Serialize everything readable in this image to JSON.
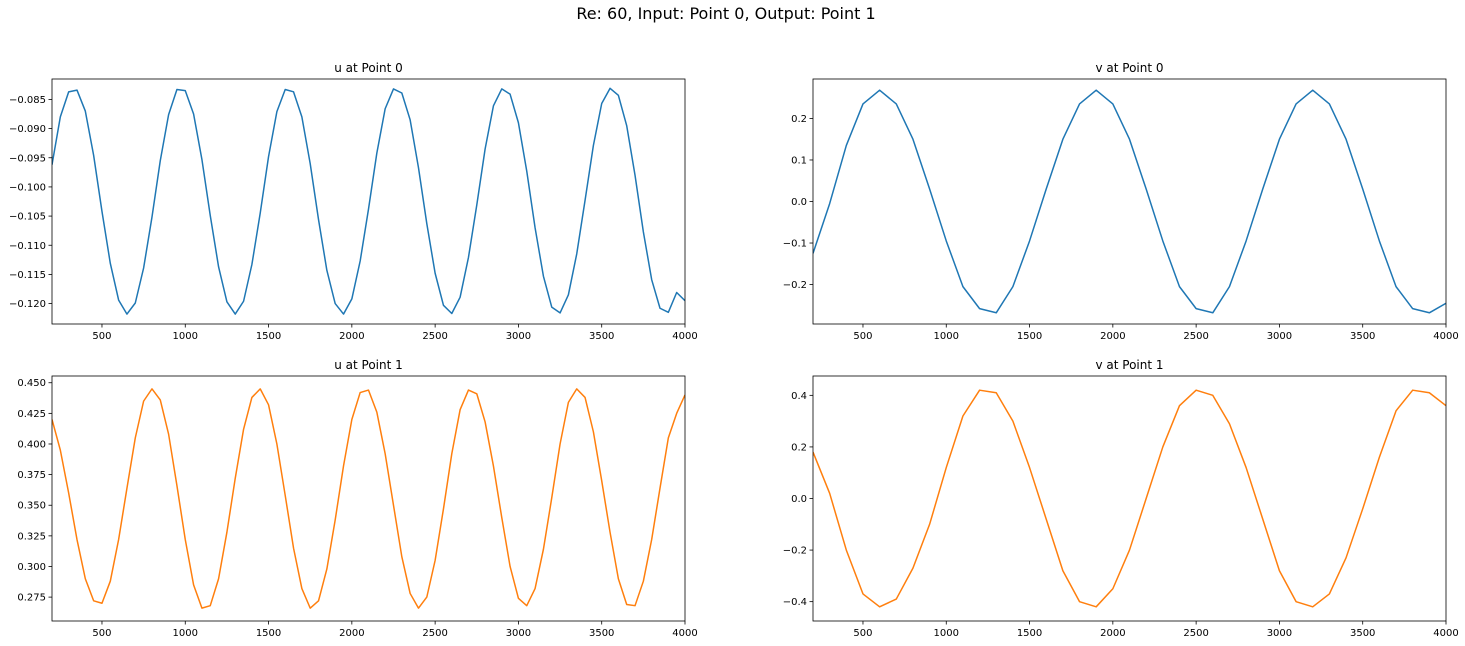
{
  "figure": {
    "suptitle": "Re: 60, Input: Point 0, Output: Point 1"
  },
  "chart_data": [
    {
      "type": "line",
      "title": "u at Point 0",
      "xlabel": "",
      "ylabel": "",
      "xlim": [
        200,
        4000
      ],
      "ylim": [
        -0.1235,
        -0.0815
      ],
      "xticks": [
        500,
        1000,
        1500,
        2000,
        2500,
        3000,
        3500,
        4000
      ],
      "yticks": [
        -0.085,
        -0.09,
        -0.095,
        -0.1,
        -0.105,
        -0.11,
        -0.115,
        -0.12
      ],
      "ytick_labels": [
        "−0.085",
        "−0.090",
        "−0.095",
        "−0.100",
        "−0.105",
        "−0.110",
        "−0.115",
        "−0.120"
      ],
      "series": [
        {
          "color": "#1f77b4",
          "x": [
            200,
            250,
            300,
            350,
            400,
            450,
            500,
            550,
            600,
            650,
            700,
            750,
            800,
            850,
            900,
            950,
            1000,
            1050,
            1100,
            1150,
            1200,
            1250,
            1300,
            1350,
            1400,
            1450,
            1500,
            1550,
            1600,
            1650,
            1700,
            1750,
            1800,
            1850,
            1900,
            1950,
            2000,
            2050,
            2100,
            2150,
            2200,
            2250,
            2300,
            2350,
            2400,
            2450,
            2500,
            2550,
            2600,
            2650,
            2700,
            2750,
            2800,
            2850,
            2900,
            2950,
            3000,
            3050,
            3100,
            3150,
            3200,
            3250,
            3300,
            3350,
            3400,
            3450,
            3500,
            3550,
            3600,
            3650,
            3700,
            3750,
            3800,
            3850,
            3900,
            3950,
            4000
          ],
          "y": [
            -0.0962,
            -0.088,
            -0.0837,
            -0.0834,
            -0.087,
            -0.0946,
            -0.1042,
            -0.1131,
            -0.1194,
            -0.1218,
            -0.1199,
            -0.1139,
            -0.1052,
            -0.0955,
            -0.0876,
            -0.0833,
            -0.0835,
            -0.0875,
            -0.0953,
            -0.1049,
            -0.1137,
            -0.1197,
            -0.1218,
            -0.1196,
            -0.1133,
            -0.1045,
            -0.0948,
            -0.0871,
            -0.0833,
            -0.0837,
            -0.088,
            -0.096,
            -0.1056,
            -0.1143,
            -0.12,
            -0.1218,
            -0.1192,
            -0.1127,
            -0.1038,
            -0.0942,
            -0.0866,
            -0.0832,
            -0.0839,
            -0.0885,
            -0.0967,
            -0.1063,
            -0.1148,
            -0.1203,
            -0.1217,
            -0.1189,
            -0.1121,
            -0.1031,
            -0.0935,
            -0.0861,
            -0.0832,
            -0.0841,
            -0.089,
            -0.0973,
            -0.107,
            -0.1153,
            -0.1206,
            -0.1216,
            -0.1185,
            -0.1115,
            -0.1023,
            -0.0929,
            -0.0857,
            -0.0831,
            -0.0843,
            -0.0895,
            -0.098,
            -0.1077,
            -0.1159,
            -0.1208,
            -0.1215,
            -0.1181,
            -0.1195
          ]
        }
      ]
    },
    {
      "type": "line",
      "title": "v at Point 0",
      "xlabel": "",
      "ylabel": "",
      "xlim": [
        200,
        4000
      ],
      "ylim": [
        -0.295,
        0.295
      ],
      "xticks": [
        500,
        1000,
        1500,
        2000,
        2500,
        3000,
        3500,
        4000
      ],
      "yticks": [
        0.2,
        0.1,
        0.0,
        -0.1,
        -0.2
      ],
      "ytick_labels": [
        "0.2",
        "0.1",
        "0.0",
        "−0.1",
        "−0.2"
      ],
      "series": [
        {
          "color": "#1f77b4",
          "x": [
            200,
            300,
            400,
            500,
            600,
            700,
            800,
            900,
            1000,
            1100,
            1200,
            1300,
            1400,
            1500,
            1600,
            1700,
            1800,
            1900,
            2000,
            2100,
            2200,
            2300,
            2400,
            2500,
            2600,
            2700,
            2800,
            2900,
            3000,
            3100,
            3200,
            3300,
            3400,
            3500,
            3600,
            3700,
            3800,
            3900,
            4000
          ],
          "y": [
            -0.125,
            -0.005,
            0.135,
            0.235,
            0.268,
            0.235,
            0.15,
            0.03,
            -0.095,
            -0.205,
            -0.258,
            -0.268,
            -0.205,
            -0.095,
            0.03,
            0.15,
            0.235,
            0.268,
            0.235,
            0.15,
            0.03,
            -0.095,
            -0.205,
            -0.258,
            -0.268,
            -0.205,
            -0.095,
            0.03,
            0.15,
            0.235,
            0.268,
            0.235,
            0.15,
            0.03,
            -0.095,
            -0.205,
            -0.258,
            -0.268,
            -0.245
          ]
        }
      ]
    },
    {
      "type": "line",
      "title": "u at Point 1",
      "xlabel": "",
      "ylabel": "",
      "xlim": [
        200,
        4000
      ],
      "ylim": [
        0.2555,
        0.4555
      ],
      "xticks": [
        500,
        1000,
        1500,
        2000,
        2500,
        3000,
        3500,
        4000
      ],
      "yticks": [
        0.45,
        0.425,
        0.4,
        0.375,
        0.35,
        0.325,
        0.3,
        0.275
      ],
      "ytick_labels": [
        "0.450",
        "0.425",
        "0.400",
        "0.375",
        "0.350",
        "0.325",
        "0.300",
        "0.275"
      ],
      "series": [
        {
          "color": "#ff7f0e",
          "x": [
            200,
            250,
            300,
            350,
            400,
            450,
            500,
            550,
            600,
            650,
            700,
            750,
            800,
            850,
            900,
            950,
            1000,
            1050,
            1100,
            1150,
            1200,
            1250,
            1300,
            1350,
            1400,
            1450,
            1500,
            1550,
            1600,
            1650,
            1700,
            1750,
            1800,
            1850,
            1900,
            1950,
            2000,
            2050,
            2100,
            2150,
            2200,
            2250,
            2300,
            2350,
            2400,
            2450,
            2500,
            2550,
            2600,
            2650,
            2700,
            2750,
            2800,
            2850,
            2900,
            2950,
            3000,
            3050,
            3100,
            3150,
            3200,
            3250,
            3300,
            3350,
            3400,
            3450,
            3500,
            3550,
            3600,
            3650,
            3700,
            3750,
            3800,
            3850,
            3900,
            3950,
            4000
          ],
          "y": [
            0.42,
            0.395,
            0.36,
            0.322,
            0.29,
            0.272,
            0.27,
            0.288,
            0.322,
            0.364,
            0.405,
            0.435,
            0.445,
            0.436,
            0.408,
            0.366,
            0.322,
            0.285,
            0.266,
            0.268,
            0.29,
            0.328,
            0.372,
            0.412,
            0.438,
            0.445,
            0.432,
            0.4,
            0.358,
            0.315,
            0.282,
            0.266,
            0.272,
            0.298,
            0.338,
            0.382,
            0.42,
            0.442,
            0.444,
            0.426,
            0.392,
            0.35,
            0.308,
            0.278,
            0.266,
            0.275,
            0.305,
            0.347,
            0.392,
            0.428,
            0.444,
            0.441,
            0.418,
            0.382,
            0.34,
            0.3,
            0.274,
            0.268,
            0.282,
            0.314,
            0.356,
            0.4,
            0.434,
            0.445,
            0.438,
            0.41,
            0.37,
            0.328,
            0.29,
            0.269,
            0.268,
            0.288,
            0.322,
            0.364,
            0.405,
            0.425,
            0.44
          ]
        }
      ]
    },
    {
      "type": "line",
      "title": "v at Point 1",
      "xlabel": "",
      "ylabel": "",
      "xlim": [
        200,
        4000
      ],
      "ylim": [
        -0.475,
        0.475
      ],
      "xticks": [
        500,
        1000,
        1500,
        2000,
        2500,
        3000,
        3500,
        4000
      ],
      "yticks": [
        0.4,
        0.2,
        0.0,
        -0.2,
        -0.4
      ],
      "ytick_labels": [
        "0.4",
        "0.2",
        "0.0",
        "−0.2",
        "−0.4"
      ],
      "series": [
        {
          "color": "#ff7f0e",
          "x": [
            200,
            300,
            400,
            500,
            600,
            700,
            800,
            900,
            1000,
            1100,
            1200,
            1300,
            1400,
            1500,
            1600,
            1700,
            1800,
            1900,
            2000,
            2100,
            2200,
            2300,
            2400,
            2500,
            2600,
            2700,
            2800,
            2900,
            3000,
            3100,
            3200,
            3300,
            3400,
            3500,
            3600,
            3700,
            3800,
            3900,
            4000
          ],
          "y": [
            0.18,
            0.02,
            -0.2,
            -0.37,
            -0.42,
            -0.39,
            -0.27,
            -0.1,
            0.12,
            0.32,
            0.42,
            0.41,
            0.3,
            0.12,
            -0.08,
            -0.28,
            -0.4,
            -0.42,
            -0.35,
            -0.2,
            0.0,
            0.2,
            0.36,
            0.42,
            0.4,
            0.29,
            0.12,
            -0.08,
            -0.28,
            -0.4,
            -0.42,
            -0.37,
            -0.23,
            -0.04,
            0.16,
            0.34,
            0.42,
            0.41,
            0.36
          ]
        }
      ]
    }
  ]
}
